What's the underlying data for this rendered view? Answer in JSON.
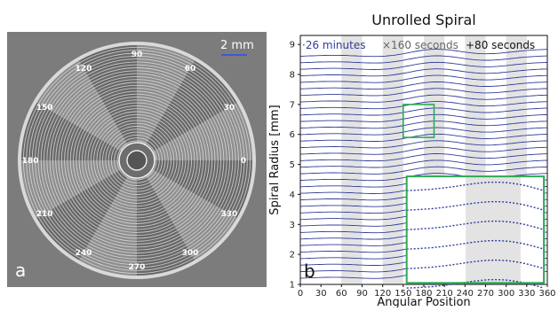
{
  "panel_a": {
    "letter": "a",
    "scale_bar_label": "2 mm",
    "angle_labels": [
      "90",
      "60",
      "30",
      "0",
      "330",
      "300",
      "270",
      "240",
      "210",
      "180",
      "150",
      "120"
    ]
  },
  "chart_data": {
    "type": "line",
    "panel_letter": "b",
    "title": "Unrolled Spiral",
    "xlabel": "Angular Position",
    "ylabel": "Spiral Radius [mm]",
    "xlim": [
      0,
      360
    ],
    "ylim": [
      1,
      9.3
    ],
    "xticks": [
      0,
      30,
      60,
      90,
      120,
      150,
      180,
      210,
      240,
      270,
      300,
      330,
      360
    ],
    "yticks": [
      1,
      2,
      3,
      4,
      5,
      6,
      7,
      8,
      9
    ],
    "legend": [
      {
        "label": "·26 minutes",
        "color": "#2f3d9a"
      },
      {
        "label": "×160 seconds",
        "color": "#666666"
      },
      {
        "label": "+80 seconds",
        "color": "#111111"
      }
    ],
    "band_color": "#e3e3e3",
    "spiral_start_radius": 1.2,
    "spiral_end_radius": 8.6,
    "spiral_line_count": 35,
    "inset_box_color": "#2eaa55",
    "zoom_region": {
      "x": [
        150,
        195
      ],
      "y": [
        5.9,
        7.0
      ]
    },
    "inset_region": {
      "x": [
        155,
        355
      ],
      "y": [
        1.05,
        4.6
      ]
    }
  }
}
